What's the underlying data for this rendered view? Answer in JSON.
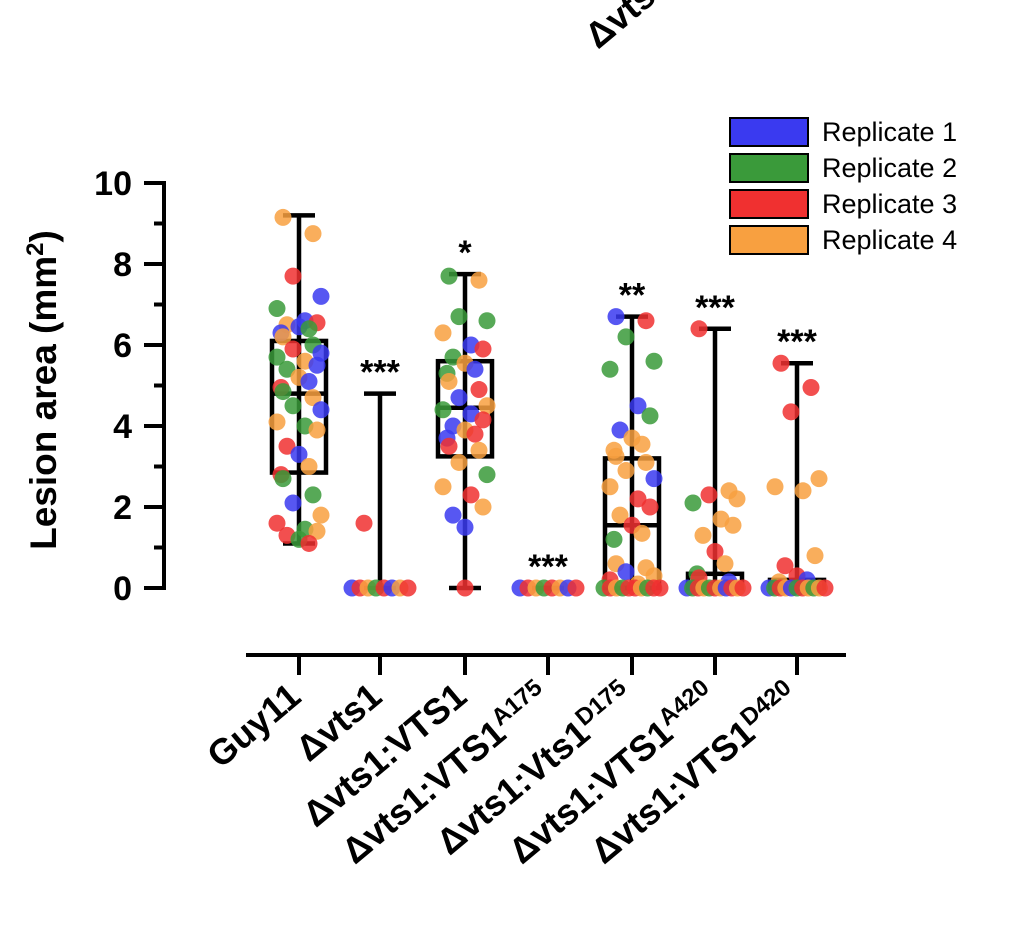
{
  "header_cut": "Δvts",
  "chart_data": {
    "type": "scatter",
    "subtype": "box-and-dot plot",
    "ylabel": "Lesion area (mm",
    "ylabel_sup": "2",
    "ylabel_end": ")",
    "ylim": [
      0,
      10
    ],
    "yticks": [
      0,
      2,
      4,
      6,
      8,
      10
    ],
    "tick_labels": [
      "0",
      "2",
      "4",
      "6",
      "8",
      "10"
    ],
    "legend_position": "top-right",
    "series": [
      {
        "name": "Replicate 1",
        "color": "#3a3af0"
      },
      {
        "name": "Replicate 2",
        "color": "#3a9a3a"
      },
      {
        "name": "Replicate 3",
        "color": "#f03030"
      },
      {
        "name": "Replicate 4",
        "color": "#f8a040"
      }
    ],
    "categories": [
      {
        "label": "Guy11",
        "base": "Guy11",
        "sup": "",
        "min": 1.1,
        "q1": 2.85,
        "median": 4.8,
        "q3": 6.1,
        "max": 9.2,
        "sig": "",
        "points": [
          {
            "y": 9.15,
            "r": 3
          },
          {
            "y": 8.75,
            "r": 3
          },
          {
            "y": 7.7,
            "r": 2
          },
          {
            "y": 7.2,
            "r": 0
          },
          {
            "y": 6.9,
            "r": 1
          },
          {
            "y": 6.6,
            "r": 0
          },
          {
            "y": 6.55,
            "r": 2
          },
          {
            "y": 6.5,
            "r": 3
          },
          {
            "y": 6.45,
            "r": 0
          },
          {
            "y": 6.4,
            "r": 1
          },
          {
            "y": 6.3,
            "r": 0
          },
          {
            "y": 6.2,
            "r": 3
          },
          {
            "y": 6.0,
            "r": 1
          },
          {
            "y": 5.9,
            "r": 2
          },
          {
            "y": 5.8,
            "r": 0
          },
          {
            "y": 5.7,
            "r": 1
          },
          {
            "y": 5.6,
            "r": 3
          },
          {
            "y": 5.5,
            "r": 0
          },
          {
            "y": 5.4,
            "r": 1
          },
          {
            "y": 5.2,
            "r": 3
          },
          {
            "y": 5.1,
            "r": 0
          },
          {
            "y": 4.95,
            "r": 2
          },
          {
            "y": 4.85,
            "r": 1
          },
          {
            "y": 4.7,
            "r": 3
          },
          {
            "y": 4.5,
            "r": 1
          },
          {
            "y": 4.4,
            "r": 0
          },
          {
            "y": 4.1,
            "r": 3
          },
          {
            "y": 4.0,
            "r": 1
          },
          {
            "y": 3.9,
            "r": 3
          },
          {
            "y": 3.5,
            "r": 2
          },
          {
            "y": 3.3,
            "r": 0
          },
          {
            "y": 3.0,
            "r": 3
          },
          {
            "y": 2.8,
            "r": 2
          },
          {
            "y": 2.7,
            "r": 1
          },
          {
            "y": 2.3,
            "r": 1
          },
          {
            "y": 2.1,
            "r": 0
          },
          {
            "y": 1.8,
            "r": 3
          },
          {
            "y": 1.6,
            "r": 2
          },
          {
            "y": 1.45,
            "r": 1
          },
          {
            "y": 1.4,
            "r": 3
          },
          {
            "y": 1.3,
            "r": 2
          },
          {
            "y": 1.2,
            "r": 1
          },
          {
            "y": 1.1,
            "r": 2
          }
        ]
      },
      {
        "label": "Δvts1",
        "base": "Δvts1",
        "sup": "",
        "min": 0,
        "q1": 0,
        "median": 0,
        "q3": 0,
        "max": 4.8,
        "sig": "***",
        "points": [
          {
            "y": 1.6,
            "r": 2
          },
          {
            "y": 0,
            "r": 0
          },
          {
            "y": 0,
            "r": 2
          },
          {
            "y": 0,
            "r": 3
          },
          {
            "y": 0,
            "r": 1
          },
          {
            "y": 0,
            "r": 2
          },
          {
            "y": 0,
            "r": 0
          },
          {
            "y": 0,
            "r": 3
          },
          {
            "y": 0,
            "r": 2
          }
        ]
      },
      {
        "label": "Δvts1:VTS1",
        "base": "Δvts1:VTS1",
        "sup": "",
        "min": 0,
        "q1": 3.25,
        "median": 4.45,
        "q3": 5.6,
        "max": 7.75,
        "sig": "*",
        "points": [
          {
            "y": 7.7,
            "r": 1
          },
          {
            "y": 7.6,
            "r": 3
          },
          {
            "y": 6.7,
            "r": 1
          },
          {
            "y": 6.6,
            "r": 1
          },
          {
            "y": 6.3,
            "r": 3
          },
          {
            "y": 6.0,
            "r": 0
          },
          {
            "y": 5.9,
            "r": 2
          },
          {
            "y": 5.7,
            "r": 1
          },
          {
            "y": 5.55,
            "r": 3
          },
          {
            "y": 5.4,
            "r": 0
          },
          {
            "y": 5.3,
            "r": 1
          },
          {
            "y": 5.1,
            "r": 3
          },
          {
            "y": 4.9,
            "r": 2
          },
          {
            "y": 4.7,
            "r": 0
          },
          {
            "y": 4.5,
            "r": 3
          },
          {
            "y": 4.4,
            "r": 1
          },
          {
            "y": 4.3,
            "r": 0
          },
          {
            "y": 4.15,
            "r": 2
          },
          {
            "y": 4.0,
            "r": 0
          },
          {
            "y": 3.9,
            "r": 3
          },
          {
            "y": 3.8,
            "r": 2
          },
          {
            "y": 3.7,
            "r": 0
          },
          {
            "y": 3.5,
            "r": 2
          },
          {
            "y": 3.4,
            "r": 3
          },
          {
            "y": 3.1,
            "r": 3
          },
          {
            "y": 2.8,
            "r": 1
          },
          {
            "y": 2.5,
            "r": 3
          },
          {
            "y": 2.3,
            "r": 2
          },
          {
            "y": 2.0,
            "r": 3
          },
          {
            "y": 1.8,
            "r": 0
          },
          {
            "y": 1.5,
            "r": 0
          },
          {
            "y": 0,
            "r": 2
          }
        ]
      },
      {
        "label": "Δvts1:VTS1A175",
        "base": "Δvts1:VTS1",
        "sup": "A175",
        "min": 0,
        "q1": 0,
        "median": 0,
        "q3": 0,
        "max": 0,
        "sig": "***",
        "points": [
          {
            "y": 0,
            "r": 0
          },
          {
            "y": 0,
            "r": 2
          },
          {
            "y": 0,
            "r": 3
          },
          {
            "y": 0,
            "r": 1
          },
          {
            "y": 0,
            "r": 2
          },
          {
            "y": 0,
            "r": 3
          },
          {
            "y": 0,
            "r": 0
          },
          {
            "y": 0,
            "r": 2
          }
        ]
      },
      {
        "label": "Δvts1:Vts1D175",
        "base": "Δvts1:Vts1",
        "sup": "D175",
        "min": 0,
        "q1": 0,
        "median": 1.55,
        "q3": 3.2,
        "max": 6.7,
        "sig": "**",
        "points": [
          {
            "y": 6.7,
            "r": 0
          },
          {
            "y": 6.6,
            "r": 2
          },
          {
            "y": 6.2,
            "r": 1
          },
          {
            "y": 5.6,
            "r": 1
          },
          {
            "y": 5.4,
            "r": 1
          },
          {
            "y": 4.5,
            "r": 0
          },
          {
            "y": 4.25,
            "r": 1
          },
          {
            "y": 3.9,
            "r": 0
          },
          {
            "y": 3.7,
            "r": 3
          },
          {
            "y": 3.55,
            "r": 3
          },
          {
            "y": 3.4,
            "r": 3
          },
          {
            "y": 3.25,
            "r": 3
          },
          {
            "y": 3.1,
            "r": 3
          },
          {
            "y": 2.9,
            "r": 3
          },
          {
            "y": 2.7,
            "r": 0
          },
          {
            "y": 2.5,
            "r": 3
          },
          {
            "y": 2.2,
            "r": 2
          },
          {
            "y": 2.0,
            "r": 2
          },
          {
            "y": 1.8,
            "r": 3
          },
          {
            "y": 1.55,
            "r": 2
          },
          {
            "y": 1.35,
            "r": 3
          },
          {
            "y": 1.2,
            "r": 1
          },
          {
            "y": 0.6,
            "r": 3
          },
          {
            "y": 0.5,
            "r": 3
          },
          {
            "y": 0.4,
            "r": 0
          },
          {
            "y": 0.3,
            "r": 3
          },
          {
            "y": 0.2,
            "r": 2
          },
          {
            "y": 0.1,
            "r": 3
          },
          {
            "y": 0,
            "r": 1
          },
          {
            "y": 0,
            "r": 2
          },
          {
            "y": 0,
            "r": 3
          },
          {
            "y": 0,
            "r": 1
          },
          {
            "y": 0,
            "r": 2
          },
          {
            "y": 0,
            "r": 2
          },
          {
            "y": 0,
            "r": 3
          },
          {
            "y": 0,
            "r": 1
          },
          {
            "y": 0,
            "r": 2
          },
          {
            "y": 0,
            "r": 2
          }
        ]
      },
      {
        "label": "Δvts1:VTS1A420",
        "base": "Δvts1:VTS1",
        "sup": "A420",
        "min": 0,
        "q1": 0,
        "median": 0.1,
        "q3": 0.35,
        "max": 6.4,
        "sig": "***",
        "points": [
          {
            "y": 6.4,
            "r": 2
          },
          {
            "y": 2.4,
            "r": 3
          },
          {
            "y": 2.3,
            "r": 2
          },
          {
            "y": 2.2,
            "r": 3
          },
          {
            "y": 2.1,
            "r": 1
          },
          {
            "y": 1.7,
            "r": 3
          },
          {
            "y": 1.55,
            "r": 3
          },
          {
            "y": 1.3,
            "r": 3
          },
          {
            "y": 0.9,
            "r": 2
          },
          {
            "y": 0.6,
            "r": 3
          },
          {
            "y": 0.35,
            "r": 1
          },
          {
            "y": 0.25,
            "r": 2
          },
          {
            "y": 0.15,
            "r": 0
          },
          {
            "y": 0,
            "r": 0
          },
          {
            "y": 0,
            "r": 1
          },
          {
            "y": 0,
            "r": 2
          },
          {
            "y": 0,
            "r": 3
          },
          {
            "y": 0,
            "r": 1
          },
          {
            "y": 0,
            "r": 2
          },
          {
            "y": 0,
            "r": 3
          },
          {
            "y": 0,
            "r": 0
          },
          {
            "y": 0,
            "r": 2
          },
          {
            "y": 0,
            "r": 3
          },
          {
            "y": 0,
            "r": 2
          }
        ]
      },
      {
        "label": "Δvts1:VTS1D420",
        "base": "Δvts1:VTS1",
        "sup": "D420",
        "min": 0,
        "q1": 0,
        "median": 0,
        "q3": 0.2,
        "max": 5.55,
        "sig": "***",
        "points": [
          {
            "y": 5.55,
            "r": 2
          },
          {
            "y": 4.95,
            "r": 2
          },
          {
            "y": 4.35,
            "r": 2
          },
          {
            "y": 2.7,
            "r": 3
          },
          {
            "y": 2.5,
            "r": 3
          },
          {
            "y": 2.4,
            "r": 3
          },
          {
            "y": 0.8,
            "r": 3
          },
          {
            "y": 0.55,
            "r": 2
          },
          {
            "y": 0.3,
            "r": 2
          },
          {
            "y": 0.2,
            "r": 0
          },
          {
            "y": 0.15,
            "r": 3
          },
          {
            "y": 0,
            "r": 0
          },
          {
            "y": 0,
            "r": 1
          },
          {
            "y": 0,
            "r": 2
          },
          {
            "y": 0,
            "r": 3
          },
          {
            "y": 0,
            "r": 0
          },
          {
            "y": 0,
            "r": 1
          },
          {
            "y": 0,
            "r": 2
          },
          {
            "y": 0,
            "r": 3
          },
          {
            "y": 0,
            "r": 1
          },
          {
            "y": 0,
            "r": 3
          },
          {
            "y": 0,
            "r": 2
          }
        ]
      }
    ]
  }
}
